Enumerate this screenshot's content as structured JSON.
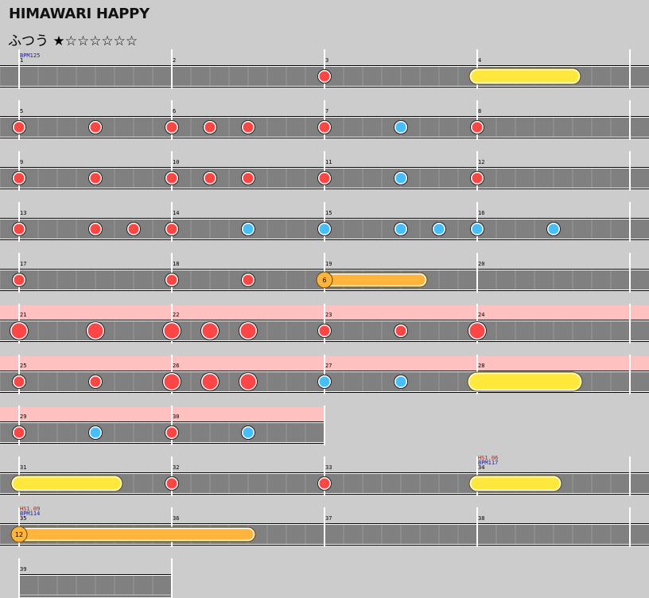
{
  "song": {
    "title": "HIMAWARI HAPPY",
    "difficulty": "ふつう ★☆☆☆☆☆☆"
  },
  "colors": {
    "background": "#cccccc",
    "lane": "#808080",
    "gogo": "#ffc0c0",
    "don": "#ff4646",
    "ka": "#46bfff",
    "roll": "#ffe83c",
    "balloon": "#ffb43c"
  },
  "chart_data": {
    "type": "taiko-chart",
    "measures_per_row": 4,
    "subdivisions_per_measure": 8,
    "rows": [
      {
        "first_measure": 1,
        "measure_count": 4,
        "gogo": false,
        "annotations": [
          {
            "measure": 1,
            "lines": [
              {
                "text": "BPM125",
                "kind": "bpm"
              }
            ]
          }
        ],
        "notes": [
          {
            "measure": 3,
            "pos": 0,
            "type": "don"
          }
        ],
        "rolls": [
          {
            "type": "roll",
            "start": [
              4,
              0
            ],
            "end": [
              4,
              5
            ]
          }
        ]
      },
      {
        "first_measure": 5,
        "measure_count": 4,
        "gogo": false,
        "annotations": [],
        "notes": [
          {
            "measure": 5,
            "pos": 0,
            "type": "don"
          },
          {
            "measure": 5,
            "pos": 4,
            "type": "don"
          },
          {
            "measure": 6,
            "pos": 0,
            "type": "don"
          },
          {
            "measure": 6,
            "pos": 2,
            "type": "don"
          },
          {
            "measure": 6,
            "pos": 4,
            "type": "don"
          },
          {
            "measure": 7,
            "pos": 0,
            "type": "don"
          },
          {
            "measure": 7,
            "pos": 4,
            "type": "ka"
          },
          {
            "measure": 8,
            "pos": 0,
            "type": "don"
          }
        ],
        "rolls": []
      },
      {
        "first_measure": 9,
        "measure_count": 4,
        "gogo": false,
        "annotations": [],
        "notes": [
          {
            "measure": 9,
            "pos": 0,
            "type": "don"
          },
          {
            "measure": 9,
            "pos": 4,
            "type": "don"
          },
          {
            "measure": 10,
            "pos": 0,
            "type": "don"
          },
          {
            "measure": 10,
            "pos": 2,
            "type": "don"
          },
          {
            "measure": 10,
            "pos": 4,
            "type": "don"
          },
          {
            "measure": 11,
            "pos": 0,
            "type": "don"
          },
          {
            "measure": 11,
            "pos": 4,
            "type": "ka"
          },
          {
            "measure": 12,
            "pos": 0,
            "type": "don"
          }
        ],
        "rolls": []
      },
      {
        "first_measure": 13,
        "measure_count": 4,
        "gogo": false,
        "annotations": [],
        "notes": [
          {
            "measure": 13,
            "pos": 0,
            "type": "don"
          },
          {
            "measure": 13,
            "pos": 4,
            "type": "don"
          },
          {
            "measure": 13,
            "pos": 6,
            "type": "don"
          },
          {
            "measure": 14,
            "pos": 0,
            "type": "don"
          },
          {
            "measure": 14,
            "pos": 4,
            "type": "ka"
          },
          {
            "measure": 15,
            "pos": 0,
            "type": "ka"
          },
          {
            "measure": 15,
            "pos": 4,
            "type": "ka"
          },
          {
            "measure": 15,
            "pos": 6,
            "type": "ka"
          },
          {
            "measure": 16,
            "pos": 0,
            "type": "ka"
          },
          {
            "measure": 16,
            "pos": 4,
            "type": "ka"
          }
        ],
        "rolls": []
      },
      {
        "first_measure": 17,
        "measure_count": 4,
        "gogo": false,
        "annotations": [],
        "notes": [
          {
            "measure": 17,
            "pos": 0,
            "type": "don"
          },
          {
            "measure": 18,
            "pos": 0,
            "type": "don"
          },
          {
            "measure": 18,
            "pos": 4,
            "type": "don"
          }
        ],
        "rolls": [
          {
            "type": "balloon",
            "count": "6",
            "start": [
              19,
              0
            ],
            "end": [
              19,
              5
            ]
          }
        ]
      },
      {
        "first_measure": 21,
        "measure_count": 4,
        "gogo": true,
        "annotations": [],
        "notes": [
          {
            "measure": 21,
            "pos": 0,
            "type": "don-big"
          },
          {
            "measure": 21,
            "pos": 4,
            "type": "don-big"
          },
          {
            "measure": 22,
            "pos": 0,
            "type": "don-big"
          },
          {
            "measure": 22,
            "pos": 2,
            "type": "don-big"
          },
          {
            "measure": 22,
            "pos": 4,
            "type": "don-big"
          },
          {
            "measure": 23,
            "pos": 0,
            "type": "don"
          },
          {
            "measure": 23,
            "pos": 4,
            "type": "don"
          },
          {
            "measure": 24,
            "pos": 0,
            "type": "don-big"
          }
        ],
        "rolls": []
      },
      {
        "first_measure": 25,
        "measure_count": 4,
        "gogo": true,
        "annotations": [],
        "notes": [
          {
            "measure": 25,
            "pos": 0,
            "type": "don"
          },
          {
            "measure": 25,
            "pos": 4,
            "type": "don"
          },
          {
            "measure": 26,
            "pos": 0,
            "type": "don-big"
          },
          {
            "measure": 26,
            "pos": 2,
            "type": "don-big"
          },
          {
            "measure": 26,
            "pos": 4,
            "type": "don-big"
          },
          {
            "measure": 27,
            "pos": 0,
            "type": "ka"
          },
          {
            "measure": 27,
            "pos": 4,
            "type": "ka"
          }
        ],
        "rolls": [
          {
            "type": "roll-big",
            "start": [
              28,
              0
            ],
            "end": [
              28,
              5
            ]
          }
        ]
      },
      {
        "first_measure": 29,
        "measure_count": 2,
        "gogo": true,
        "annotations": [],
        "notes": [
          {
            "measure": 29,
            "pos": 0,
            "type": "don"
          },
          {
            "measure": 29,
            "pos": 4,
            "type": "ka"
          },
          {
            "measure": 30,
            "pos": 0,
            "type": "don"
          },
          {
            "measure": 30,
            "pos": 4,
            "type": "ka"
          }
        ],
        "rolls": []
      },
      {
        "first_measure": 31,
        "measure_count": 4,
        "gogo": false,
        "annotations": [
          {
            "measure": 34,
            "lines": [
              {
                "text": "HS1.06",
                "kind": "hs"
              },
              {
                "text": "BPM117",
                "kind": "bpm"
              }
            ]
          }
        ],
        "notes": [
          {
            "measure": 32,
            "pos": 0,
            "type": "don"
          },
          {
            "measure": 33,
            "pos": 0,
            "type": "don"
          }
        ],
        "rolls": [
          {
            "type": "roll",
            "start": [
              31,
              0
            ],
            "end": [
              31,
              5
            ]
          },
          {
            "type": "roll",
            "start": [
              34,
              0
            ],
            "end": [
              34,
              4
            ]
          }
        ]
      },
      {
        "first_measure": 35,
        "measure_count": 4,
        "gogo": false,
        "annotations": [
          {
            "measure": 35,
            "lines": [
              {
                "text": "HS1.09",
                "kind": "hs"
              },
              {
                "text": "BPM114",
                "kind": "bpm"
              }
            ]
          }
        ],
        "notes": [],
        "rolls": [
          {
            "type": "balloon",
            "count": "12",
            "start": [
              35,
              0
            ],
            "end": [
              36,
              4
            ]
          }
        ]
      },
      {
        "first_measure": 39,
        "measure_count": 1,
        "gogo": false,
        "annotations": [],
        "notes": [],
        "rolls": []
      }
    ]
  }
}
